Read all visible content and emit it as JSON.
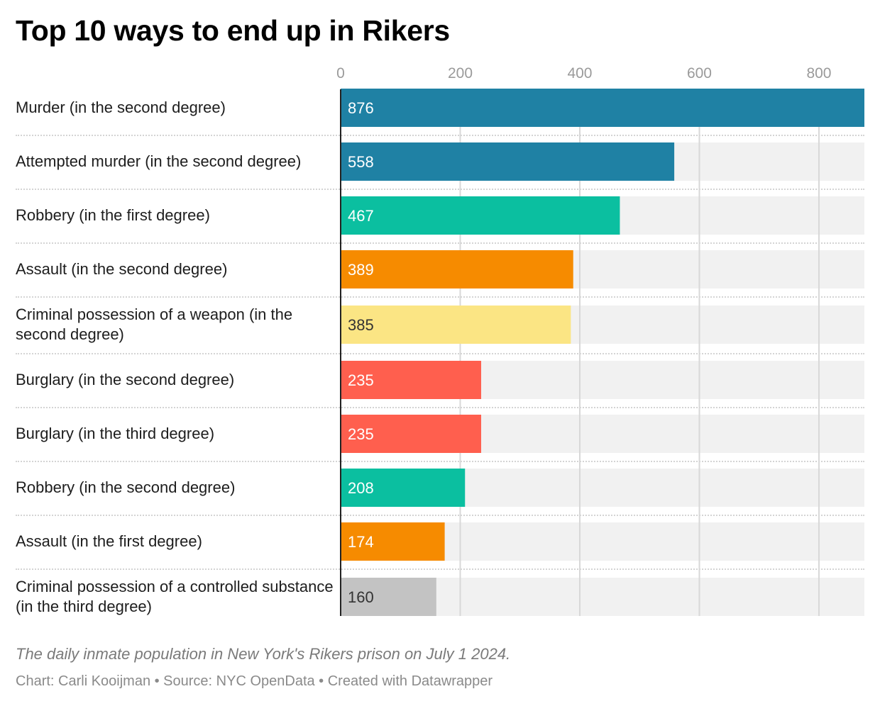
{
  "title": "Top 10 ways to end up in Rikers",
  "note": "The daily inmate population in New York's Rikers prison on July 1 2024.",
  "credit": "Chart: Carli Kooijman • Source: NYC OpenData • Created with Datawrapper",
  "chart_data": {
    "type": "bar",
    "orientation": "horizontal",
    "title": "Top 10 ways to end up in Rikers",
    "xlabel": "",
    "ylabel": "",
    "xlim": [
      0,
      876
    ],
    "ticks": [
      0,
      200,
      400,
      600,
      800
    ],
    "grid": true,
    "categories": [
      "Murder (in the second degree)",
      "Attempted murder (in the second degree)",
      "Robbery (in the first degree)",
      "Assault (in the second degree)",
      "Criminal possession of a weapon (in the second degree)",
      "Burglary (in the second degree)",
      "Burglary (in the third degree)",
      "Robbery (in the second degree)",
      "Assault (in the first degree)",
      "Criminal possession of a controlled substance (in the third degree)"
    ],
    "values": [
      876,
      558,
      467,
      389,
      385,
      235,
      235,
      208,
      174,
      160
    ],
    "colors": [
      "#1f81a4",
      "#1f81a4",
      "#0bbfa0",
      "#f68b00",
      "#fbe584",
      "#ff5f4e",
      "#ff5f4e",
      "#0bbfa0",
      "#f68b00",
      "#c3c3c3"
    ],
    "label_colors": [
      "#ffffff",
      "#ffffff",
      "#ffffff",
      "#ffffff",
      "#333333",
      "#ffffff",
      "#ffffff",
      "#ffffff",
      "#ffffff",
      "#333333"
    ]
  }
}
